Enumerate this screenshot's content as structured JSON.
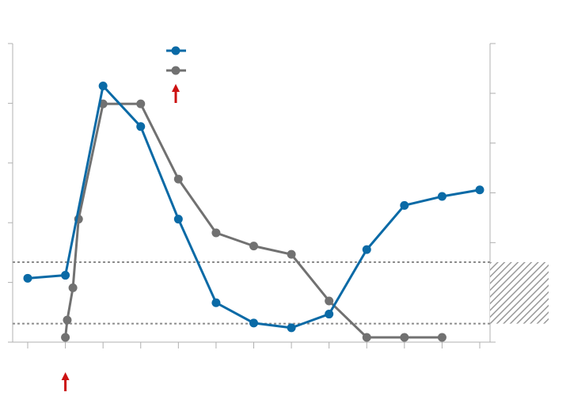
{
  "chart_data": {
    "type": "line",
    "title": "",
    "xlabel": "",
    "ylabel": "",
    "x": [
      0,
      1,
      2,
      3,
      4,
      5,
      6,
      7,
      8,
      9,
      10,
      11,
      12
    ],
    "xlim": [
      0,
      12
    ],
    "y_left_lim": [
      0,
      5
    ],
    "y_right_lim": [
      0,
      6
    ],
    "reference_band": {
      "axis": "left",
      "y_low": 0.31,
      "y_high": 1.34,
      "line_style": "dotted",
      "hatched_band_on_right_axis": true
    },
    "series": [
      {
        "axis": "left",
        "x": [
          0,
          1,
          2,
          3,
          4,
          5,
          6,
          7,
          8,
          9,
          10,
          11,
          12
        ],
        "values": [
          1.07,
          1.12,
          4.29,
          3.61,
          2.06,
          0.66,
          0.32,
          0.24,
          0.47,
          1.55,
          2.29,
          2.44,
          2.55
        ]
      },
      {
        "axis": "left",
        "x": [
          1,
          1.05,
          1.2,
          1.35,
          2,
          3,
          4,
          5,
          6,
          7,
          8,
          9,
          10,
          11
        ],
        "values": [
          0.08,
          0.37,
          0.91,
          2.06,
          3.99,
          3.99,
          2.73,
          1.83,
          1.61,
          1.47,
          0.69,
          0.08,
          0.08,
          0.08
        ]
      }
    ],
    "colors": {
      "series_1": "#0a6aa6",
      "series_2": "#717171",
      "reference_lines": "#8c8c8c",
      "hatch": "#a0a0a0",
      "axes": "#b0b0b0",
      "arrows": "#cc1111"
    },
    "legend": {
      "placement": "top-center"
    },
    "annotations": [
      {
        "type": "arrow",
        "at": "x-axis-below",
        "x": 1
      },
      {
        "type": "arrow",
        "at": "below-legend"
      }
    ],
    "grid": false
  }
}
